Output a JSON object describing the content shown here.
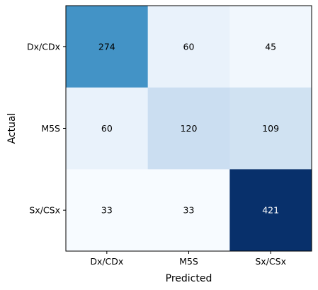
{
  "chart_data": {
    "type": "heatmap",
    "title": "",
    "xlabel": "Predicted",
    "ylabel": "Actual",
    "x_categories": [
      "Dx/CDx",
      "M5S",
      "Sx/CSx"
    ],
    "y_categories": [
      "Dx/CDx",
      "M5S",
      "Sx/CSx"
    ],
    "values": [
      [
        274,
        60,
        45
      ],
      [
        60,
        120,
        109
      ],
      [
        33,
        33,
        421
      ]
    ],
    "colormap": "Blues",
    "colorbar": false,
    "grid": false
  }
}
